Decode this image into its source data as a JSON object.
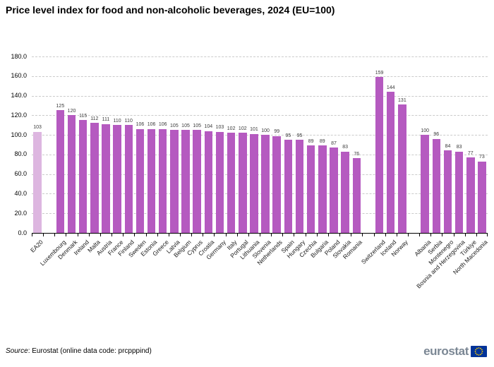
{
  "footer": {
    "source_label": "Source",
    "source_rest": ": Eurostat (online data code: prcpppind)",
    "logo_text": "eurostat"
  },
  "colors": {
    "bar": "#b55ac0",
    "highlight_bar": "#ddb6e0",
    "grid": "#cbcbcb",
    "axis": "#000000",
    "logo_text": "#7b8794",
    "flag_blue": "#003399",
    "flag_stars": "#ffcc00"
  },
  "chart_data": {
    "type": "bar",
    "title": "Price level index for food and non-alcoholic beverages, 2024 (EU=100)",
    "xlabel": "",
    "ylabel": "",
    "ylim": [
      0,
      180
    ],
    "ytick_step": 20,
    "ytick_labels": [
      "0.0",
      "20.0",
      "40.0",
      "60.0",
      "80.0",
      "100.0",
      "120.0",
      "140.0",
      "160.0",
      "180.0"
    ],
    "grid": "horizontal-dashed",
    "legend": "none",
    "highlight_index": 0,
    "highlight_category": "EA20",
    "categories": [
      "EA20",
      "",
      "Luxembourg",
      "Denmark",
      "Ireland",
      "Malta",
      "Austria",
      "France",
      "Finland",
      "Sweden",
      "Estonia",
      "Greece",
      "Latvia",
      "Belgium",
      "Cyprus",
      "Croatia",
      "Germany",
      "Italy",
      "Portugal",
      "Lithuania",
      "Slovenia",
      "Netherlands",
      "Spain",
      "Hungary",
      "Czechia",
      "Bulgaria",
      "Poland",
      "Slovakia",
      "Romania",
      "",
      "Switzerland",
      "Iceland",
      "Norway",
      "",
      "Albania",
      "Serbia",
      "Montenegro",
      "Bosnia and Herzegovina",
      "Türkiye",
      "North Macedonia"
    ],
    "values": [
      103,
      null,
      125,
      120,
      115,
      112,
      111,
      110,
      110,
      106,
      106,
      106,
      105,
      105,
      105,
      104,
      103,
      102,
      102,
      101,
      100,
      99,
      95,
      95,
      89,
      89,
      87,
      83,
      76,
      null,
      159,
      144,
      131,
      null,
      100,
      96,
      84,
      83,
      77,
      73
    ]
  }
}
